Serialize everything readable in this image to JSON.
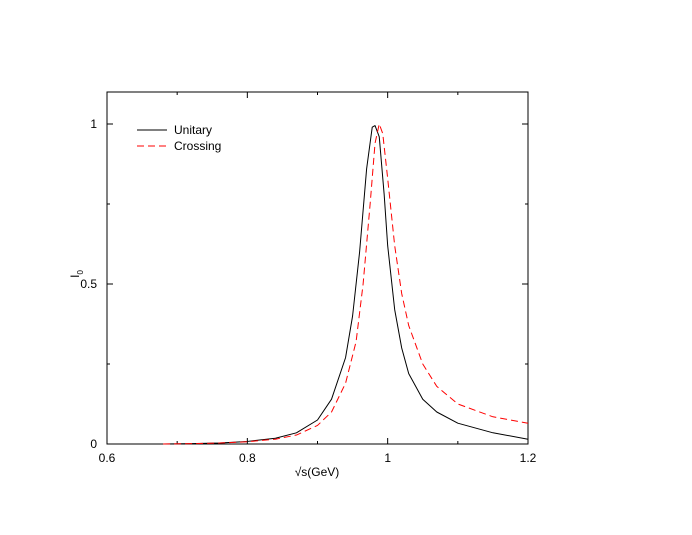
{
  "chart_data": {
    "type": "line",
    "title": "",
    "xlabel": "√s(GeV)",
    "ylabel_main": "I",
    "ylabel_sub": "0",
    "xlim": [
      0.6,
      1.2
    ],
    "ylim": [
      0,
      1.1
    ],
    "xticks": [
      0.6,
      0.8,
      1.0,
      1.2
    ],
    "xtick_labels": [
      "0.6",
      "0.8",
      "1",
      "1.2"
    ],
    "yticks": [
      0,
      0.5,
      1.0
    ],
    "ytick_labels": [
      "0",
      "0.5",
      "1"
    ],
    "grid": false,
    "legend_position": "top-left",
    "series": [
      {
        "name": "Unitary",
        "color": "#000000",
        "dash": "solid",
        "points": [
          [
            0.68,
            0.0
          ],
          [
            0.72,
            0.001
          ],
          [
            0.76,
            0.003
          ],
          [
            0.8,
            0.008
          ],
          [
            0.84,
            0.018
          ],
          [
            0.87,
            0.035
          ],
          [
            0.9,
            0.075
          ],
          [
            0.92,
            0.14
          ],
          [
            0.94,
            0.27
          ],
          [
            0.95,
            0.4
          ],
          [
            0.96,
            0.6
          ],
          [
            0.97,
            0.86
          ],
          [
            0.978,
            0.99
          ],
          [
            0.982,
            0.995
          ],
          [
            0.988,
            0.96
          ],
          [
            0.995,
            0.78
          ],
          [
            1.0,
            0.62
          ],
          [
            1.01,
            0.42
          ],
          [
            1.02,
            0.3
          ],
          [
            1.03,
            0.22
          ],
          [
            1.05,
            0.14
          ],
          [
            1.07,
            0.1
          ],
          [
            1.1,
            0.065
          ],
          [
            1.15,
            0.035
          ],
          [
            1.2,
            0.015
          ]
        ]
      },
      {
        "name": "Crossing",
        "color": "#ff0000",
        "dash": "dashed",
        "points": [
          [
            0.68,
            0.0
          ],
          [
            0.72,
            0.001
          ],
          [
            0.76,
            0.003
          ],
          [
            0.8,
            0.007
          ],
          [
            0.84,
            0.015
          ],
          [
            0.87,
            0.028
          ],
          [
            0.9,
            0.058
          ],
          [
            0.92,
            0.1
          ],
          [
            0.94,
            0.19
          ],
          [
            0.955,
            0.32
          ],
          [
            0.965,
            0.5
          ],
          [
            0.975,
            0.75
          ],
          [
            0.982,
            0.94
          ],
          [
            0.988,
            1.0
          ],
          [
            0.993,
            0.97
          ],
          [
            1.0,
            0.83
          ],
          [
            1.01,
            0.62
          ],
          [
            1.02,
            0.47
          ],
          [
            1.03,
            0.37
          ],
          [
            1.05,
            0.25
          ],
          [
            1.07,
            0.18
          ],
          [
            1.1,
            0.125
          ],
          [
            1.15,
            0.085
          ],
          [
            1.2,
            0.065
          ]
        ]
      }
    ]
  }
}
